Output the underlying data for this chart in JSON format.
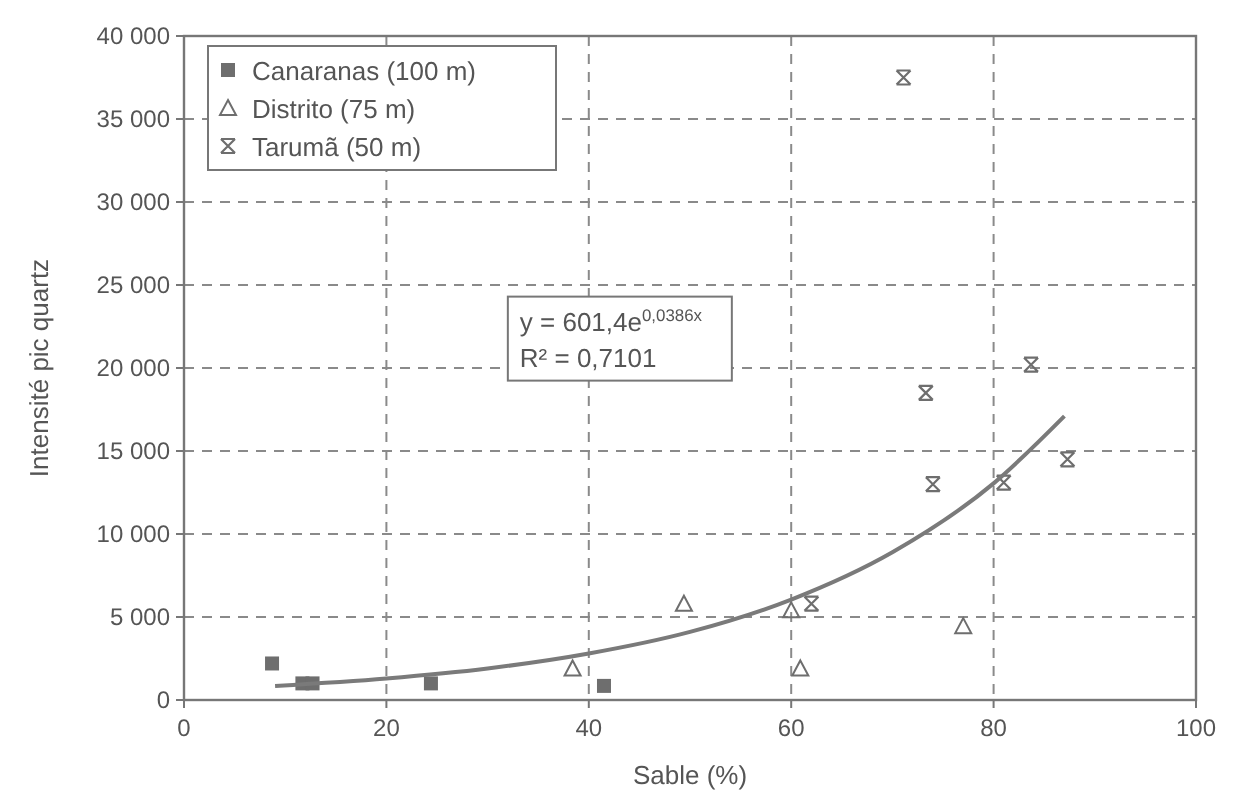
{
  "chart_data": {
    "type": "scatter",
    "xlabel": "Sable (%)",
    "ylabel": "Intensité pic quartz",
    "xlim": [
      0,
      100
    ],
    "xticks": [
      0,
      20,
      40,
      60,
      80,
      100
    ],
    "ylim": [
      0,
      40000
    ],
    "yticks": [
      0,
      {
        "value": 5000,
        "label": "5 000"
      },
      {
        "value": 10000,
        "label": "10 000"
      },
      {
        "value": 15000,
        "label": "15 000"
      },
      {
        "value": 20000,
        "label": "20 000"
      },
      {
        "value": 25000,
        "label": "25 000"
      },
      {
        "value": 30000,
        "label": "30 000"
      },
      {
        "value": 35000,
        "label": "35 000"
      },
      {
        "value": 40000,
        "label": "40 000"
      }
    ],
    "grid": true,
    "legend": "top left",
    "series": [
      {
        "name": "Canaranas (100 m)",
        "color": "#6e6e6e",
        "marker": "square",
        "x": [
          8.7,
          11.7,
          12.7,
          24.4,
          41.5
        ],
        "values": [
          2200,
          1000,
          1000,
          1000,
          850
        ]
      },
      {
        "name": "Distrito (75 m)",
        "color": "#6e6e6e",
        "marker": "triangle",
        "x": [
          38.4,
          49.4,
          60,
          60.9,
          77
        ],
        "values": [
          1900,
          5800,
          5400,
          1900,
          4450
        ]
      },
      {
        "name": "Tarumã (50 m)",
        "color": "#6e6e6e",
        "marker": "cross",
        "x": [
          71.1,
          83.7,
          73.3,
          74,
          62,
          81,
          87.3
        ],
        "values": [
          37500,
          20200,
          18500,
          13000,
          5800,
          13100,
          14500
        ]
      },
      {
        "type": "line",
        "color": "#7a7a7a",
        "marker": "none",
        "x": [
          9,
          20,
          30,
          40,
          50,
          60,
          70,
          80,
          87
        ],
        "values": [
          850,
          1300,
          1900,
          2800,
          4100,
          6050,
          8900,
          13050,
          17100
        ]
      }
    ],
    "annotations": [
      "y = 601,4e$^{0,0386x}$",
      "R² = 0,7101"
    ]
  }
}
